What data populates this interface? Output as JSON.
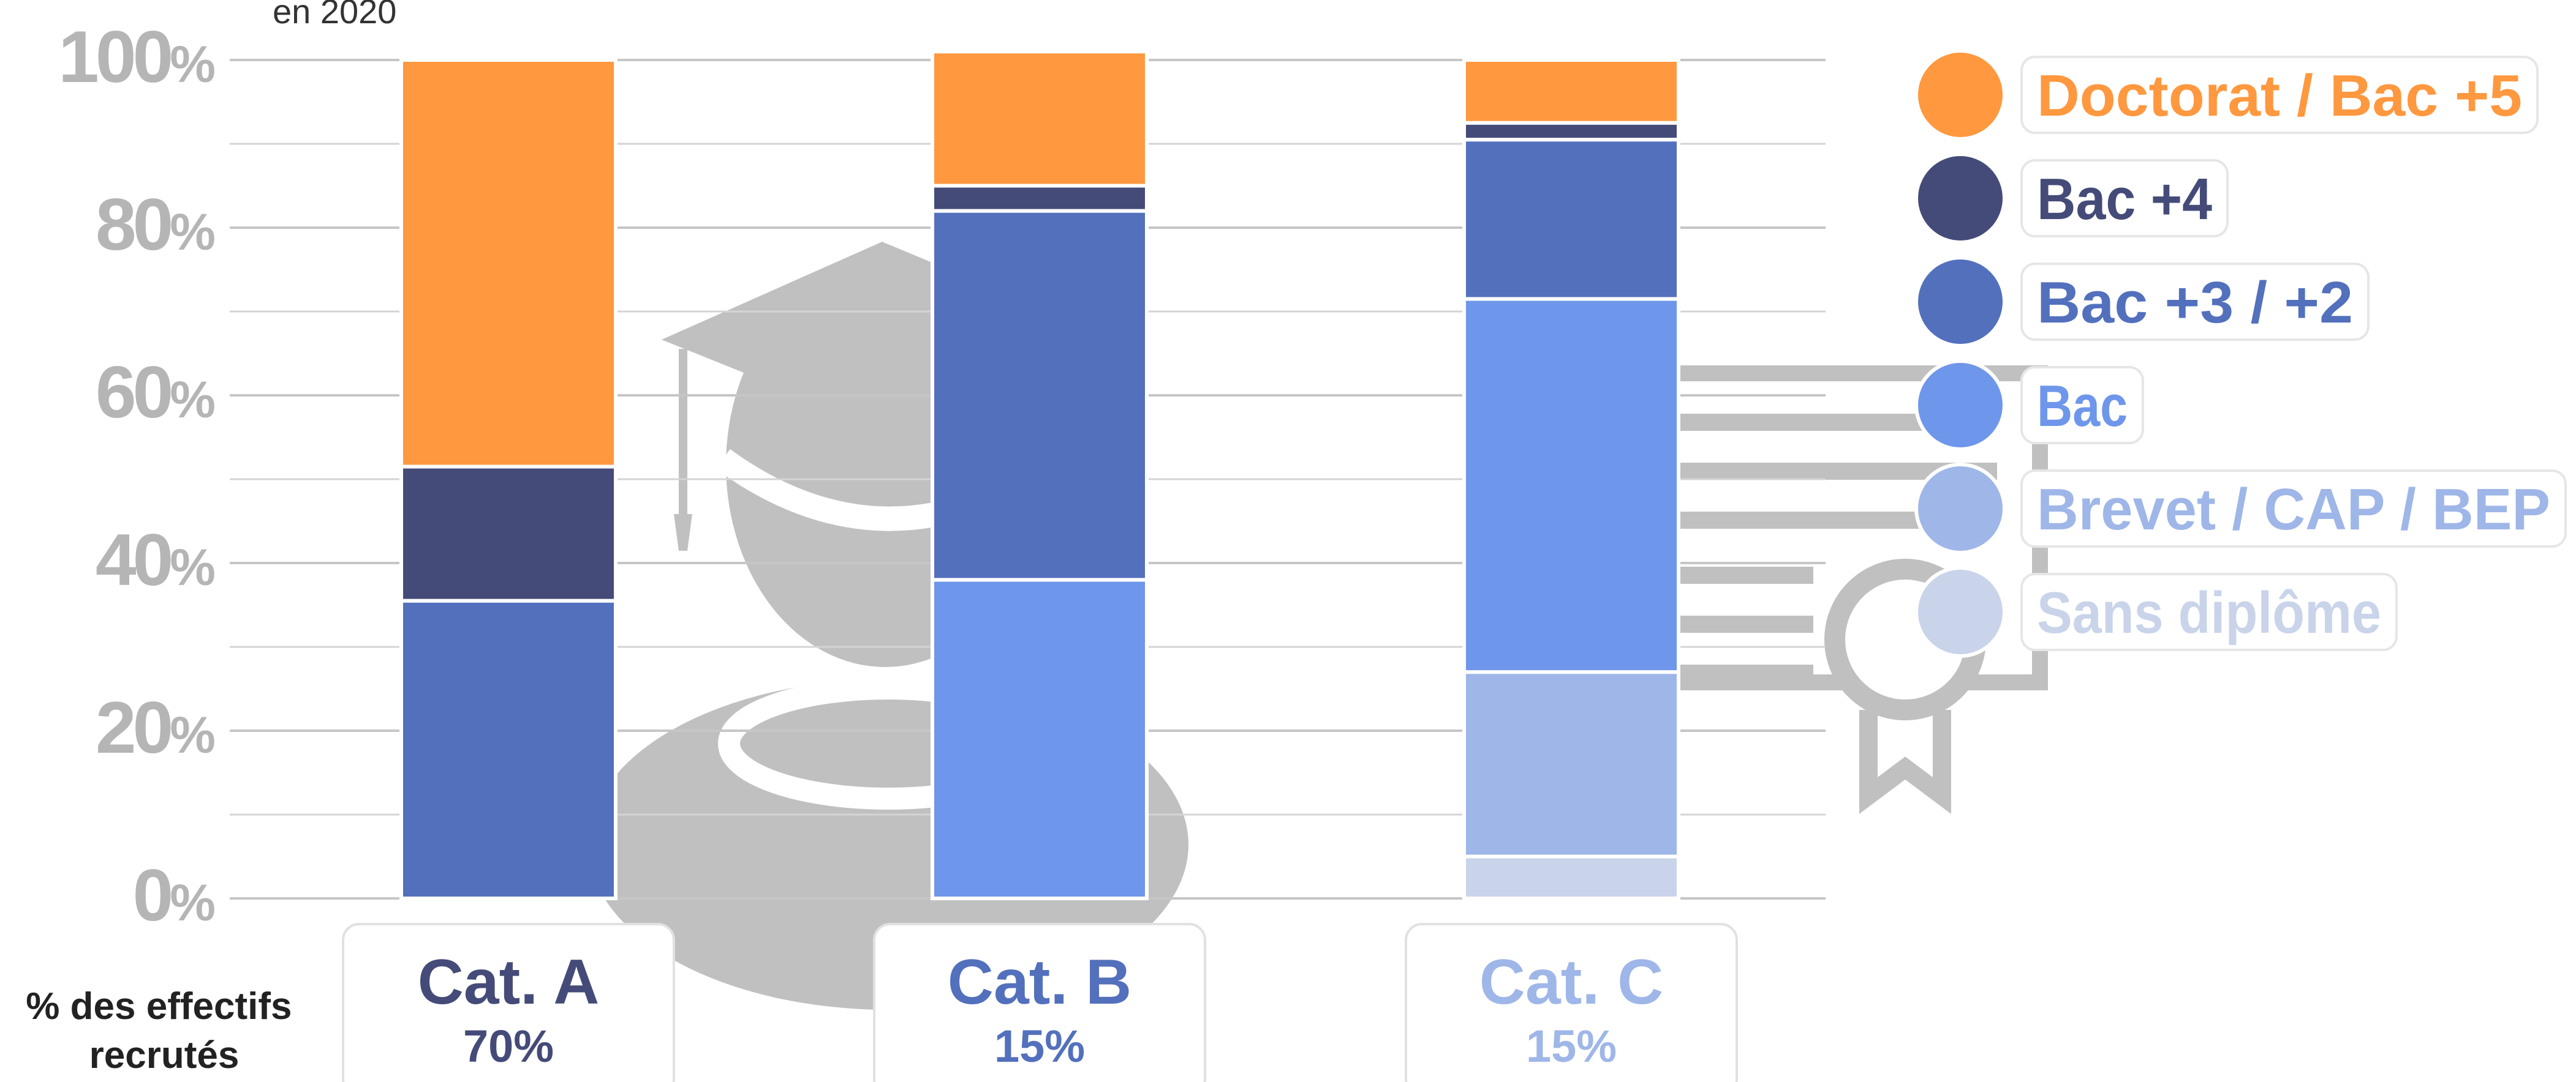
{
  "chart_data": {
    "type": "bar",
    "stacked": true,
    "subtitle": "en 2020",
    "categories": [
      "Cat. A",
      "Cat. B",
      "Cat. C"
    ],
    "category_shares": [
      "70%",
      "15%",
      "15%"
    ],
    "category_label_colors": [
      "#454b78",
      "#5370bd",
      "#9fb6e8"
    ],
    "row_label": "% des effectifs recrutés",
    "ylim": [
      0,
      100
    ],
    "yticks": [
      0,
      20,
      40,
      60,
      80,
      100
    ],
    "grid": true,
    "legend_position": "right",
    "series": [
      {
        "name": "Sans diplôme",
        "color": "#c9d4ea",
        "values": [
          0,
          0,
          5
        ]
      },
      {
        "name": "Brevet / CAP / BEP",
        "color": "#9fb6e8",
        "values": [
          0,
          0,
          22
        ]
      },
      {
        "name": "Bac",
        "color": "#6e96ea",
        "values": [
          0,
          38,
          44.5
        ]
      },
      {
        "name": "Bac +3 / +2",
        "color": "#5370bd",
        "values": [
          35.5,
          44,
          19
        ]
      },
      {
        "name": "Bac +4",
        "color": "#454b78",
        "values": [
          16,
          3,
          2
        ]
      },
      {
        "name": "Doctorat / Bac +5",
        "color": "#ff983f",
        "values": [
          48.5,
          16,
          7.5
        ]
      }
    ],
    "legend_order": [
      "Doctorat / Bac +5",
      "Bac +4",
      "Bac +3 / +2",
      "Bac",
      "Brevet / CAP / BEP",
      "Sans diplôme"
    ]
  }
}
